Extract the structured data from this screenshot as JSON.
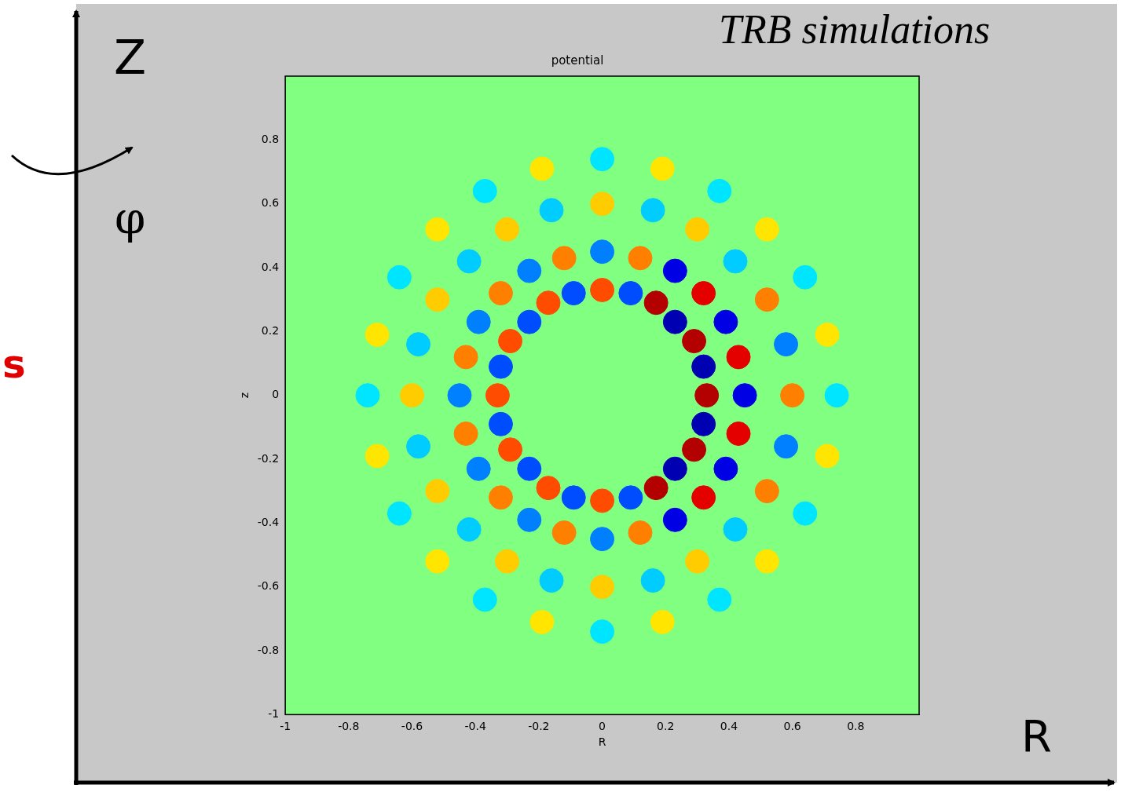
{
  "page": {
    "caption": "TRB simulations",
    "axis_labels": {
      "vertical": "Z",
      "rotation": "φ",
      "horizontal": "R"
    },
    "side_text": "s"
  },
  "chart_data": {
    "type": "scatter",
    "title": "potential",
    "x_label": "R",
    "y_label": "z",
    "xlim": [
      -1,
      1
    ],
    "ylim": [
      -1,
      1
    ],
    "xticks": [
      -1,
      -0.8,
      -0.6,
      -0.4,
      -0.2,
      0,
      0.2,
      0.4,
      0.6,
      0.8
    ],
    "yticks": [
      -1,
      -0.8,
      -0.6,
      -0.4,
      -0.2,
      0,
      0.2,
      0.4,
      0.6,
      0.8
    ],
    "grid": false,
    "tick_labels": true,
    "clim": [
      -1,
      1
    ],
    "points": [
      [
        0.33,
        0,
        0.9
      ],
      [
        0.32,
        0.09,
        -0.9
      ],
      [
        0.29,
        0.17,
        0.9
      ],
      [
        0.23,
        0.23,
        -0.9
      ],
      [
        0.17,
        0.29,
        0.9
      ],
      [
        0.09,
        0.32,
        -0.6
      ],
      [
        0,
        0.33,
        0.6
      ],
      [
        -0.09,
        0.32,
        -0.6
      ],
      [
        -0.17,
        0.29,
        0.6
      ],
      [
        -0.23,
        0.23,
        -0.6
      ],
      [
        -0.29,
        0.17,
        0.6
      ],
      [
        -0.32,
        0.09,
        -0.6
      ],
      [
        -0.33,
        0,
        0.6
      ],
      [
        -0.32,
        -0.09,
        -0.6
      ],
      [
        -0.29,
        -0.17,
        0.6
      ],
      [
        -0.23,
        -0.23,
        -0.6
      ],
      [
        -0.17,
        -0.29,
        0.6
      ],
      [
        -0.09,
        -0.32,
        -0.6
      ],
      [
        0,
        -0.33,
        0.6
      ],
      [
        0.09,
        -0.32,
        -0.6
      ],
      [
        0.17,
        -0.29,
        0.9
      ],
      [
        0.23,
        -0.23,
        -0.9
      ],
      [
        0.29,
        -0.17,
        0.9
      ],
      [
        0.32,
        -0.09,
        -0.9
      ],
      [
        0.45,
        0,
        -0.8
      ],
      [
        0.43,
        0.12,
        0.8
      ],
      [
        0.39,
        0.23,
        -0.8
      ],
      [
        0.32,
        0.32,
        0.8
      ],
      [
        0.23,
        0.39,
        -0.8
      ],
      [
        0.12,
        0.43,
        0.5
      ],
      [
        0,
        0.45,
        -0.5
      ],
      [
        -0.12,
        0.43,
        0.5
      ],
      [
        -0.23,
        0.39,
        -0.5
      ],
      [
        -0.32,
        0.32,
        0.5
      ],
      [
        -0.39,
        0.23,
        -0.5
      ],
      [
        -0.43,
        0.12,
        0.5
      ],
      [
        -0.45,
        0,
        -0.5
      ],
      [
        -0.43,
        -0.12,
        0.5
      ],
      [
        -0.39,
        -0.23,
        -0.5
      ],
      [
        -0.32,
        -0.32,
        0.5
      ],
      [
        -0.23,
        -0.39,
        -0.5
      ],
      [
        -0.12,
        -0.43,
        0.5
      ],
      [
        0,
        -0.45,
        -0.5
      ],
      [
        0.12,
        -0.43,
        0.5
      ],
      [
        0.23,
        -0.39,
        -0.8
      ],
      [
        0.32,
        -0.32,
        0.8
      ],
      [
        0.39,
        -0.23,
        -0.8
      ],
      [
        0.43,
        -0.12,
        0.8
      ],
      [
        0.6,
        0,
        0.5
      ],
      [
        0.58,
        0.16,
        -0.5
      ],
      [
        0.52,
        0.3,
        0.5
      ],
      [
        0.42,
        0.42,
        -0.35
      ],
      [
        0.3,
        0.52,
        0.35
      ],
      [
        0.16,
        0.58,
        -0.35
      ],
      [
        0,
        0.6,
        0.35
      ],
      [
        -0.16,
        0.58,
        -0.35
      ],
      [
        -0.3,
        0.52,
        0.35
      ],
      [
        -0.42,
        0.42,
        -0.35
      ],
      [
        -0.52,
        0.3,
        0.35
      ],
      [
        -0.58,
        0.16,
        -0.35
      ],
      [
        -0.6,
        0,
        0.35
      ],
      [
        -0.58,
        -0.16,
        -0.35
      ],
      [
        -0.52,
        -0.3,
        0.35
      ],
      [
        -0.42,
        -0.42,
        -0.35
      ],
      [
        -0.3,
        -0.52,
        0.35
      ],
      [
        -0.16,
        -0.58,
        -0.35
      ],
      [
        0,
        -0.6,
        0.35
      ],
      [
        0.16,
        -0.58,
        -0.35
      ],
      [
        0.3,
        -0.52,
        0.35
      ],
      [
        0.42,
        -0.42,
        -0.35
      ],
      [
        0.52,
        -0.3,
        0.5
      ],
      [
        0.58,
        -0.16,
        -0.5
      ],
      [
        0.74,
        0,
        -0.3
      ],
      [
        0.71,
        0.19,
        0.3
      ],
      [
        0.64,
        0.37,
        -0.3
      ],
      [
        0.52,
        0.52,
        0.3
      ],
      [
        0.37,
        0.64,
        -0.3
      ],
      [
        0.19,
        0.71,
        0.3
      ],
      [
        0,
        0.74,
        -0.3
      ],
      [
        -0.19,
        0.71,
        0.3
      ],
      [
        -0.37,
        0.64,
        -0.3
      ],
      [
        -0.52,
        0.52,
        0.3
      ],
      [
        -0.64,
        0.37,
        -0.3
      ],
      [
        -0.71,
        0.19,
        0.3
      ],
      [
        -0.74,
        0,
        -0.3
      ],
      [
        -0.71,
        -0.19,
        0.3
      ],
      [
        -0.64,
        -0.37,
        -0.3
      ],
      [
        -0.52,
        -0.52,
        0.3
      ],
      [
        -0.37,
        -0.64,
        -0.3
      ],
      [
        -0.19,
        -0.71,
        0.3
      ],
      [
        0,
        -0.74,
        -0.3
      ],
      [
        0.19,
        -0.71,
        0.3
      ],
      [
        0.37,
        -0.64,
        -0.3
      ],
      [
        0.52,
        -0.52,
        0.3
      ],
      [
        0.64,
        -0.37,
        -0.3
      ],
      [
        0.71,
        -0.19,
        0.3
      ]
    ]
  }
}
